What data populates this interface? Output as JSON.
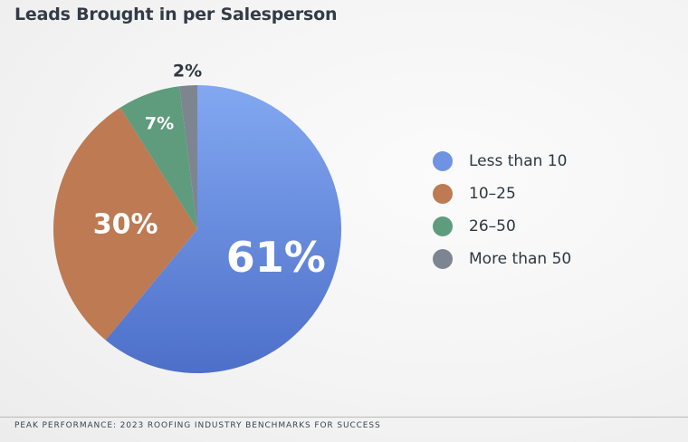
{
  "chart_data": {
    "type": "pie",
    "title": "Leads Brought in per Salesperson",
    "categories": [
      "Less than 10",
      "10–25",
      "26–50",
      "More than 50"
    ],
    "values": [
      61,
      30,
      7,
      2
    ],
    "labels": [
      "61%",
      "30%",
      "7%",
      "2%"
    ],
    "colors": [
      "#6f93e2",
      "#bd7a53",
      "#5f9b7d",
      "#7d8590"
    ],
    "legend_position": "right"
  },
  "footer": "PEAK PERFORMANCE: 2023 ROOFING INDUSTRY BENCHMARKS FOR SUCCESS"
}
